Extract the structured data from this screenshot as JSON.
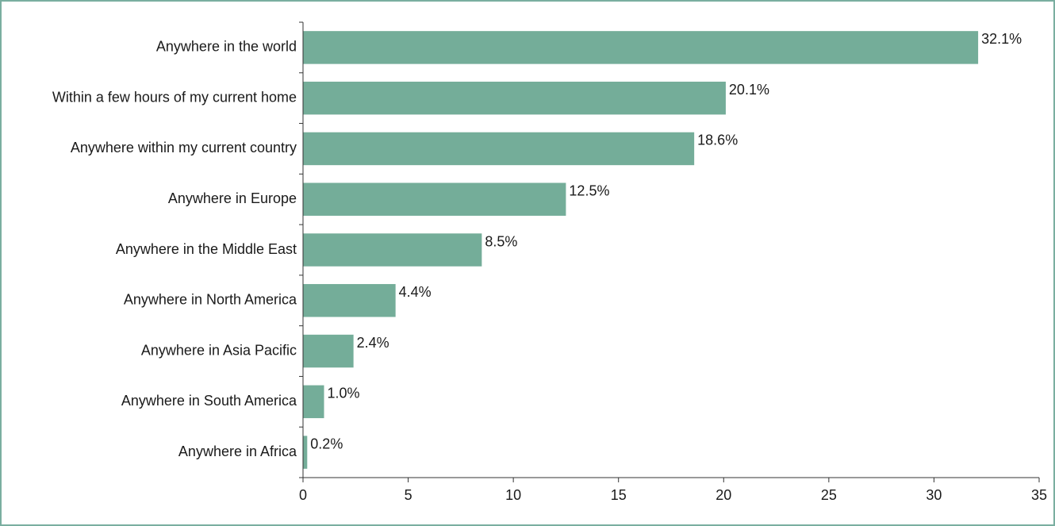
{
  "chart_data": {
    "type": "bar",
    "orientation": "horizontal",
    "categories": [
      "Anywhere in the world",
      "Within a few hours of my current home",
      "Anywhere within my current country",
      "Anywhere in Europe",
      "Anywhere in the Middle East",
      "Anywhere in North America",
      "Anywhere in Asia Pacific",
      "Anywhere in South America",
      "Anywhere in Africa"
    ],
    "values": [
      32.1,
      20.1,
      18.6,
      12.5,
      8.5,
      4.4,
      2.4,
      1.0,
      0.2
    ],
    "value_labels": [
      "32.1%",
      "20.1%",
      "18.6%",
      "12.5%",
      "8.5%",
      "4.4%",
      "2.4%",
      "1.0%",
      "0.2%"
    ],
    "xlim": [
      0,
      35
    ],
    "xticks": [
      0,
      5,
      10,
      15,
      20,
      25,
      30,
      35
    ],
    "xtick_labels": [
      "0",
      "5",
      "10",
      "15",
      "20",
      "25",
      "30",
      "35"
    ],
    "title": "",
    "xlabel": "",
    "ylabel": "",
    "grid": false,
    "legend": "none",
    "bar_color": "#74ad99",
    "border_color": "#7aaea0"
  }
}
